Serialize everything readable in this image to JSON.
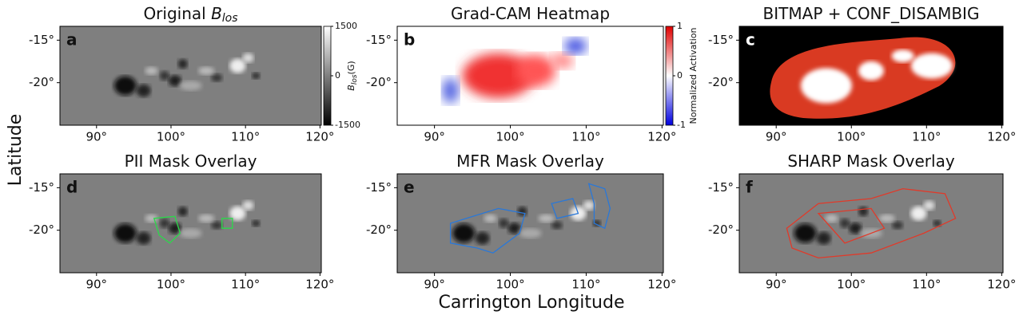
{
  "axis_labels": {
    "y": "Latitude",
    "x": "Carrington Longitude"
  },
  "x_tick_labels": [
    "90°",
    "100°",
    "110°",
    "120°"
  ],
  "y_tick_labels": [
    "-15°",
    "-20°"
  ],
  "panels": [
    {
      "letter": "a",
      "title": "Original ",
      "title_symbol": "B",
      "title_subscript": "los"
    },
    {
      "letter": "b",
      "title": "Grad-CAM Heatmap"
    },
    {
      "letter": "c",
      "title": "BITMAP + CONF_DISAMBIG"
    },
    {
      "letter": "d",
      "title": "PII Mask Overlay"
    },
    {
      "letter": "e",
      "title": "MFR Mask Overlay"
    },
    {
      "letter": "f",
      "title": "SHARP Mask Overlay"
    }
  ],
  "colorbars": [
    {
      "label_symbol": "B",
      "label_subscript": "los",
      "label_unit": "(G)",
      "ticks": [
        "1500",
        "0",
        "-1500"
      ]
    },
    {
      "label": "Normalized Activation",
      "ticks": [
        "1",
        "0",
        "-1"
      ]
    }
  ]
}
